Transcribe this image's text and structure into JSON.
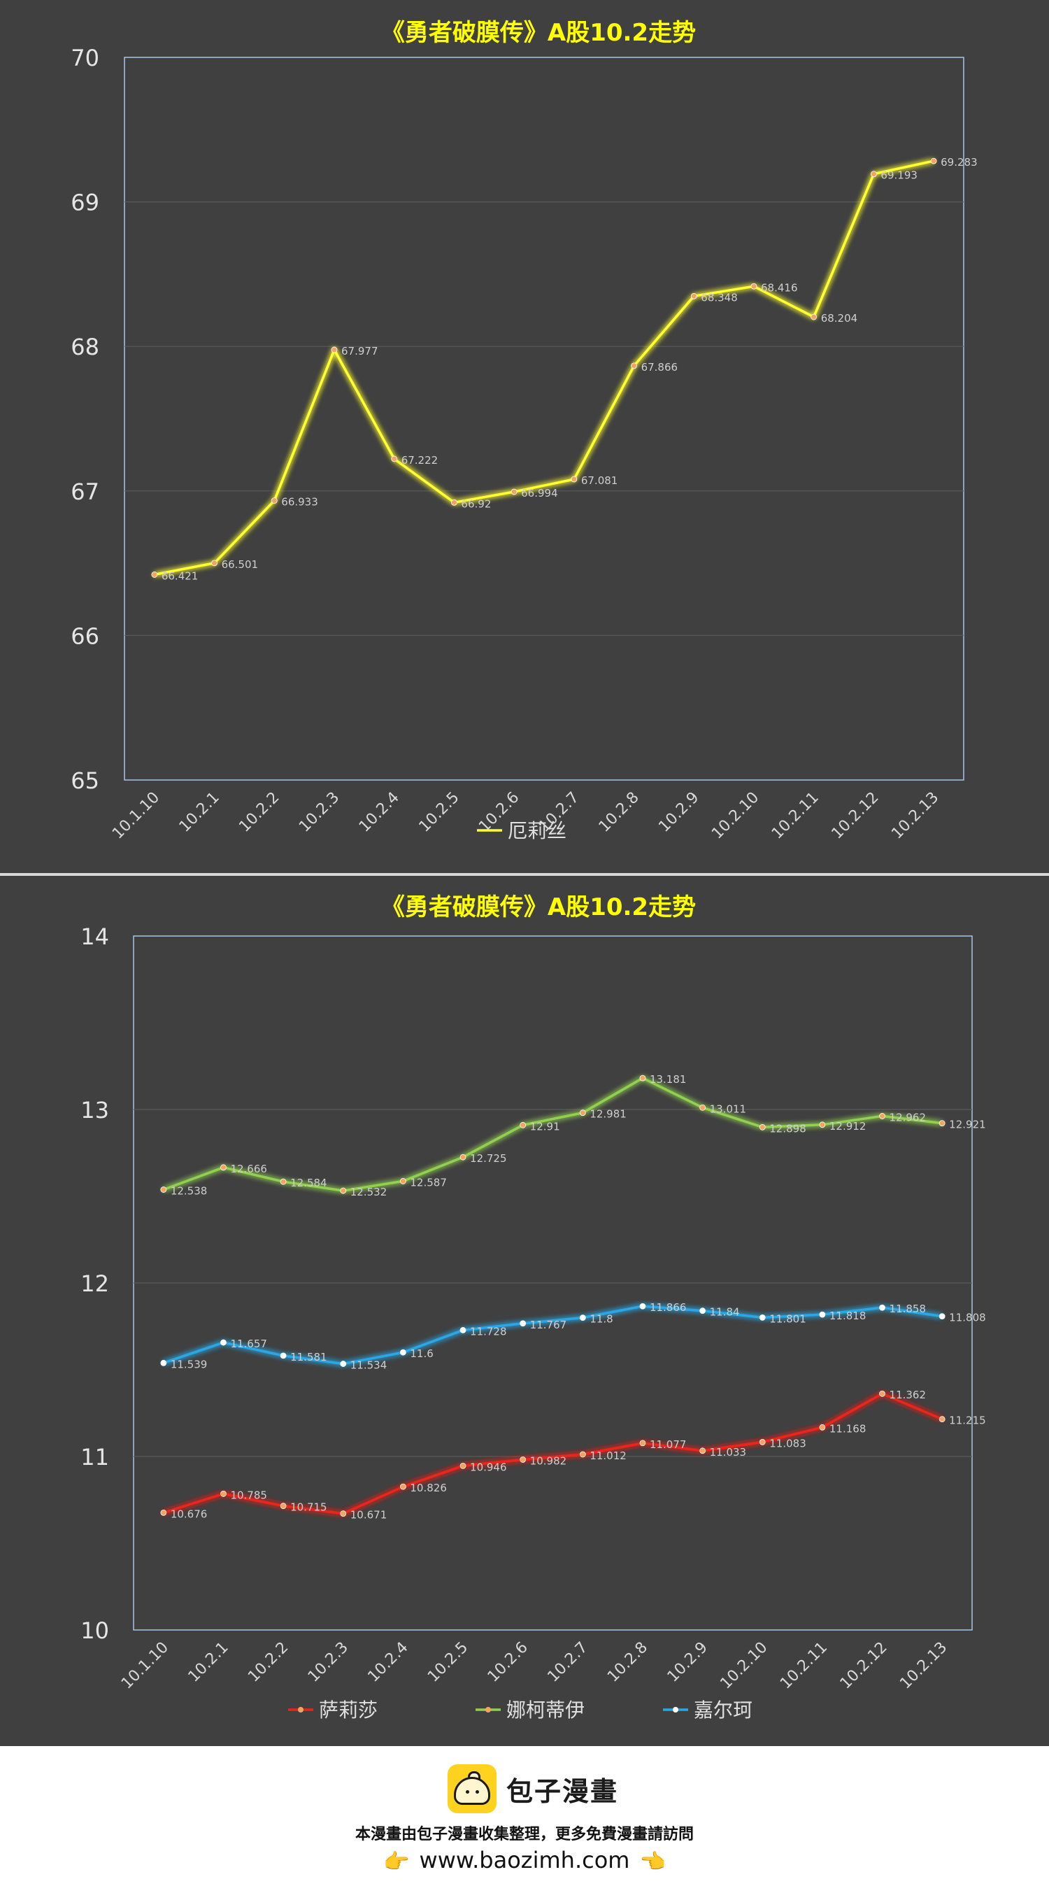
{
  "charts": [
    {
      "title": "《勇者破膜传》A股10.2走势",
      "yticks": [
        "70",
        "69",
        "68",
        "67",
        "66",
        "65"
      ]
    },
    {
      "title": "《勇者破膜传》A股10.2走势",
      "yticks": [
        "14",
        "13",
        "12",
        "11",
        "10"
      ]
    }
  ],
  "chart_data": [
    {
      "type": "line",
      "title": "《勇者破膜传》A股10.2走势",
      "categories": [
        "10.1.10",
        "10.2.1",
        "10.2.2",
        "10.2.3",
        "10.2.4",
        "10.2.5",
        "10.2.6",
        "10.2.7",
        "10.2.8",
        "10.2.9",
        "10.2.10",
        "10.2.11",
        "10.2.12",
        "10.2.13"
      ],
      "ylim": [
        65,
        70
      ],
      "grid": true,
      "legend": "bottom",
      "series": [
        {
          "name": "厄莉丝",
          "color": "#ffff33",
          "values": [
            66.421,
            66.501,
            66.933,
            67.977,
            67.222,
            66.92,
            66.994,
            67.081,
            67.866,
            68.348,
            68.416,
            68.204,
            69.193,
            69.283
          ]
        }
      ]
    },
    {
      "type": "line",
      "title": "《勇者破膜传》A股10.2走势",
      "categories": [
        "10.1.10",
        "10.2.1",
        "10.2.2",
        "10.2.3",
        "10.2.4",
        "10.2.5",
        "10.2.6",
        "10.2.7",
        "10.2.8",
        "10.2.9",
        "10.2.10",
        "10.2.11",
        "10.2.12",
        "10.2.13"
      ],
      "ylim": [
        10,
        14
      ],
      "grid": true,
      "legend": "bottom",
      "series": [
        {
          "name": "萨莉莎",
          "color": "#e8261e",
          "values": [
            10.676,
            10.785,
            10.715,
            10.671,
            10.826,
            10.946,
            10.982,
            11.012,
            11.077,
            11.033,
            11.083,
            11.168,
            11.362,
            11.215
          ]
        },
        {
          "name": "娜柯蒂伊",
          "color": "#92d050",
          "values": [
            12.538,
            12.666,
            12.584,
            12.532,
            12.587,
            12.725,
            12.91,
            12.981,
            13.181,
            13.011,
            12.898,
            12.912,
            12.962,
            12.921
          ]
        },
        {
          "name": "嘉尔珂",
          "color": "#2aa7e6",
          "values": [
            11.539,
            11.657,
            11.581,
            11.534,
            11.6,
            11.728,
            11.767,
            11.8,
            11.866,
            11.84,
            11.801,
            11.818,
            11.858,
            11.808
          ]
        }
      ]
    }
  ],
  "footer": {
    "brand": "包子漫畫",
    "logo_icon": "baozi-logo-icon",
    "note": "本漫畫由包子漫畫收集整理，更多免費漫畫請訪問",
    "url": "www.baozimh.com",
    "hand_left": "👉",
    "hand_right": "👈"
  }
}
